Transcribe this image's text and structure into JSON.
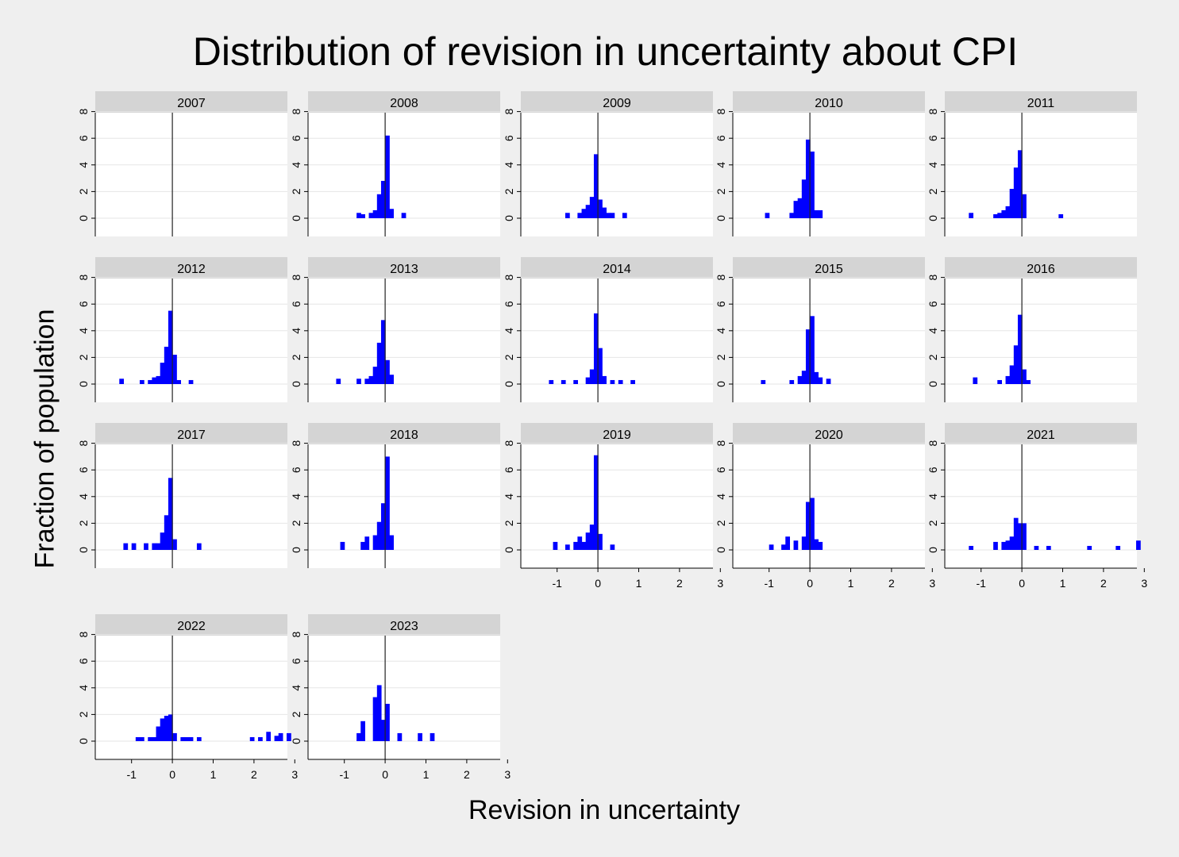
{
  "chart_data": {
    "type": "bar",
    "title": "Distribution of revision in uncertainty about CPI",
    "xlabel": "Revision in uncertainty",
    "ylabel": "Fraction of population",
    "xlim": [
      -1.5,
      3.2
    ],
    "ylim": [
      0,
      8
    ],
    "x_ticks": [
      "-1",
      "0",
      "1",
      "2",
      "3"
    ],
    "y_ticks": [
      "0",
      "2",
      "4",
      "6",
      "8"
    ],
    "bin_width": 0.1,
    "reference_line_x": 0,
    "grid": true,
    "bar_color": "#0000ff",
    "panels": [
      {
        "year": "2007",
        "bins": []
      },
      {
        "year": "2008",
        "bins": [
          [
            -0.7,
            0.4
          ],
          [
            -0.6,
            0.3
          ],
          [
            -0.4,
            0.4
          ],
          [
            -0.3,
            0.6
          ],
          [
            -0.2,
            1.8
          ],
          [
            -0.1,
            2.8
          ],
          [
            0.0,
            6.2
          ],
          [
            0.1,
            0.7
          ],
          [
            0.4,
            0.4
          ]
        ]
      },
      {
        "year": "2009",
        "bins": [
          [
            -0.8,
            0.4
          ],
          [
            -0.5,
            0.4
          ],
          [
            -0.4,
            0.7
          ],
          [
            -0.3,
            1.0
          ],
          [
            -0.2,
            1.6
          ],
          [
            -0.1,
            4.8
          ],
          [
            0.0,
            1.4
          ],
          [
            0.1,
            0.8
          ],
          [
            0.2,
            0.4
          ],
          [
            0.3,
            0.4
          ],
          [
            0.6,
            0.4
          ]
        ]
      },
      {
        "year": "2010",
        "bins": [
          [
            -1.1,
            0.4
          ],
          [
            -0.5,
            0.4
          ],
          [
            -0.4,
            1.3
          ],
          [
            -0.3,
            1.5
          ],
          [
            -0.2,
            2.9
          ],
          [
            -0.1,
            5.9
          ],
          [
            0.0,
            5.0
          ],
          [
            0.1,
            0.6
          ],
          [
            0.2,
            0.6
          ]
        ]
      },
      {
        "year": "2011",
        "bins": [
          [
            -1.3,
            0.4
          ],
          [
            -0.7,
            0.3
          ],
          [
            -0.6,
            0.4
          ],
          [
            -0.5,
            0.6
          ],
          [
            -0.4,
            0.9
          ],
          [
            -0.3,
            2.2
          ],
          [
            -0.2,
            3.8
          ],
          [
            -0.1,
            5.1
          ],
          [
            0.0,
            1.8
          ],
          [
            0.9,
            0.3
          ]
        ]
      },
      {
        "year": "2012",
        "bins": [
          [
            -1.3,
            0.4
          ],
          [
            -0.8,
            0.3
          ],
          [
            -0.6,
            0.3
          ],
          [
            -0.5,
            0.5
          ],
          [
            -0.4,
            0.6
          ],
          [
            -0.3,
            1.6
          ],
          [
            -0.2,
            2.8
          ],
          [
            -0.1,
            5.5
          ],
          [
            0.0,
            2.2
          ],
          [
            0.1,
            0.3
          ],
          [
            0.4,
            0.3
          ]
        ]
      },
      {
        "year": "2013",
        "bins": [
          [
            -1.2,
            0.4
          ],
          [
            -0.7,
            0.4
          ],
          [
            -0.5,
            0.4
          ],
          [
            -0.4,
            0.6
          ],
          [
            -0.3,
            1.3
          ],
          [
            -0.2,
            3.1
          ],
          [
            -0.1,
            4.8
          ],
          [
            0.0,
            1.8
          ],
          [
            0.1,
            0.7
          ]
        ]
      },
      {
        "year": "2014",
        "bins": [
          [
            -1.2,
            0.3
          ],
          [
            -0.9,
            0.3
          ],
          [
            -0.6,
            0.3
          ],
          [
            -0.3,
            0.5
          ],
          [
            -0.2,
            1.1
          ],
          [
            -0.1,
            5.3
          ],
          [
            0.0,
            2.7
          ],
          [
            0.1,
            0.6
          ],
          [
            0.3,
            0.3
          ],
          [
            0.5,
            0.3
          ],
          [
            0.8,
            0.3
          ]
        ]
      },
      {
        "year": "2015",
        "bins": [
          [
            -1.2,
            0.3
          ],
          [
            -0.5,
            0.3
          ],
          [
            -0.3,
            0.6
          ],
          [
            -0.2,
            1.0
          ],
          [
            -0.1,
            4.1
          ],
          [
            0.0,
            5.1
          ],
          [
            0.1,
            0.9
          ],
          [
            0.2,
            0.5
          ],
          [
            0.4,
            0.4
          ]
        ]
      },
      {
        "year": "2016",
        "bins": [
          [
            -1.2,
            0.5
          ],
          [
            -0.6,
            0.3
          ],
          [
            -0.4,
            0.6
          ],
          [
            -0.3,
            1.4
          ],
          [
            -0.2,
            2.9
          ],
          [
            -0.1,
            5.2
          ],
          [
            0.0,
            1.1
          ],
          [
            0.1,
            0.3
          ]
        ]
      },
      {
        "year": "2017",
        "bins": [
          [
            -1.2,
            0.5
          ],
          [
            -1.0,
            0.5
          ],
          [
            -0.7,
            0.5
          ],
          [
            -0.5,
            0.5
          ],
          [
            -0.4,
            0.5
          ],
          [
            -0.3,
            1.3
          ],
          [
            -0.2,
            2.6
          ],
          [
            -0.1,
            5.4
          ],
          [
            0.0,
            0.8
          ],
          [
            0.6,
            0.5
          ]
        ]
      },
      {
        "year": "2018",
        "bins": [
          [
            -1.1,
            0.6
          ],
          [
            -0.6,
            0.6
          ],
          [
            -0.5,
            1.0
          ],
          [
            -0.3,
            1.1
          ],
          [
            -0.2,
            2.1
          ],
          [
            -0.1,
            3.5
          ],
          [
            0.0,
            7.0
          ],
          [
            0.1,
            1.1
          ]
        ]
      },
      {
        "year": "2019",
        "bins": [
          [
            -1.1,
            0.6
          ],
          [
            -0.8,
            0.4
          ],
          [
            -0.6,
            0.6
          ],
          [
            -0.5,
            1.0
          ],
          [
            -0.4,
            0.6
          ],
          [
            -0.3,
            1.3
          ],
          [
            -0.2,
            1.9
          ],
          [
            -0.1,
            7.1
          ],
          [
            0.0,
            1.2
          ],
          [
            0.3,
            0.4
          ]
        ]
      },
      {
        "year": "2020",
        "bins": [
          [
            -1.0,
            0.4
          ],
          [
            -0.7,
            0.4
          ],
          [
            -0.6,
            1.0
          ],
          [
            -0.4,
            0.7
          ],
          [
            -0.2,
            1.0
          ],
          [
            -0.1,
            3.6
          ],
          [
            0.0,
            3.9
          ],
          [
            0.1,
            0.8
          ],
          [
            0.2,
            0.6
          ]
        ]
      },
      {
        "year": "2021",
        "bins": [
          [
            -1.3,
            0.3
          ],
          [
            -0.7,
            0.6
          ],
          [
            -0.5,
            0.6
          ],
          [
            -0.4,
            0.7
          ],
          [
            -0.3,
            1.0
          ],
          [
            -0.2,
            2.4
          ],
          [
            -0.1,
            2.0
          ],
          [
            0.0,
            2.0
          ],
          [
            0.3,
            0.3
          ],
          [
            0.6,
            0.3
          ],
          [
            1.6,
            0.3
          ],
          [
            2.3,
            0.3
          ],
          [
            2.8,
            0.7
          ]
        ]
      },
      {
        "year": "2022",
        "bins": [
          [
            -0.9,
            0.3
          ],
          [
            -0.8,
            0.3
          ],
          [
            -0.6,
            0.3
          ],
          [
            -0.5,
            0.3
          ],
          [
            -0.4,
            1.1
          ],
          [
            -0.3,
            1.7
          ],
          [
            -0.2,
            1.9
          ],
          [
            -0.1,
            2.0
          ],
          [
            0.0,
            0.6
          ],
          [
            0.2,
            0.3
          ],
          [
            0.3,
            0.3
          ],
          [
            0.4,
            0.3
          ],
          [
            0.6,
            0.3
          ],
          [
            1.9,
            0.3
          ],
          [
            2.1,
            0.3
          ],
          [
            2.3,
            0.7
          ],
          [
            2.5,
            0.4
          ],
          [
            2.6,
            0.6
          ],
          [
            2.8,
            0.6
          ]
        ]
      },
      {
        "year": "2023",
        "bins": [
          [
            -0.7,
            0.6
          ],
          [
            -0.6,
            1.5
          ],
          [
            -0.3,
            3.3
          ],
          [
            -0.2,
            4.2
          ],
          [
            -0.1,
            1.6
          ],
          [
            0.0,
            2.8
          ],
          [
            0.3,
            0.6
          ],
          [
            0.8,
            0.6
          ],
          [
            1.1,
            0.6
          ]
        ]
      }
    ]
  }
}
